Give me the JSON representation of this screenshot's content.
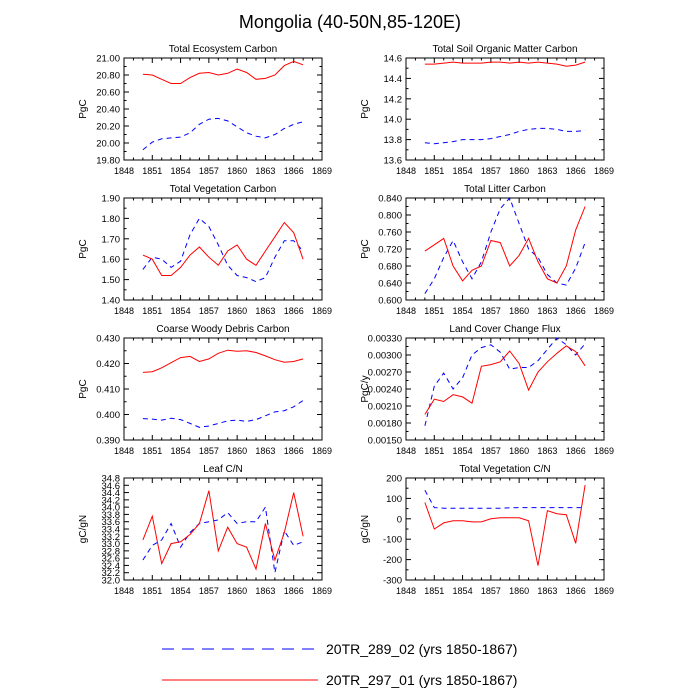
{
  "title": "Mongolia (40-50N,85-120E)",
  "legend": [
    {
      "label": "20TR_289_02 (yrs 1850-1867)",
      "color": "#0000ff",
      "dash": "dashed"
    },
    {
      "label": "20TR_297_01 (yrs 1850-1867)",
      "color": "#ff0000",
      "dash": "solid"
    }
  ],
  "chart_data": [
    {
      "type": "line",
      "title": "Total Ecosystem Carbon",
      "xlabel": "",
      "ylabel": "PgC",
      "xlim": [
        1848,
        1869
      ],
      "xticks": [
        "1848",
        "1851",
        "1854",
        "1857",
        "1860",
        "1863",
        "1866",
        "1869"
      ],
      "ylim": [
        19.8,
        21.0
      ],
      "yticks": [
        "19.80",
        "20.00",
        "20.20",
        "20.40",
        "20.60",
        "20.80",
        "21.00"
      ],
      "x": [
        1850,
        1851,
        1852,
        1853,
        1854,
        1855,
        1856,
        1857,
        1858,
        1859,
        1860,
        1861,
        1862,
        1863,
        1864,
        1865,
        1866,
        1867
      ],
      "series": [
        {
          "name": "20TR_289_02",
          "values": [
            19.92,
            20.01,
            20.05,
            20.06,
            20.07,
            20.12,
            20.22,
            20.28,
            20.29,
            20.26,
            20.19,
            20.12,
            20.08,
            20.06,
            20.1,
            20.17,
            20.22,
            20.25
          ]
        },
        {
          "name": "20TR_297_01",
          "values": [
            20.81,
            20.8,
            20.75,
            20.7,
            20.7,
            20.77,
            20.82,
            20.83,
            20.8,
            20.82,
            20.87,
            20.83,
            20.75,
            20.76,
            20.8,
            20.91,
            20.96,
            20.92
          ]
        }
      ]
    },
    {
      "type": "line",
      "title": "Total Soil Organic Matter Carbon",
      "xlabel": "",
      "ylabel": "PgC",
      "xlim": [
        1848,
        1869
      ],
      "xticks": [
        "1848",
        "1851",
        "1854",
        "1857",
        "1860",
        "1863",
        "1866",
        "1869"
      ],
      "ylim": [
        13.6,
        14.6
      ],
      "yticks": [
        "13.6",
        "13.8",
        "14.0",
        "14.2",
        "14.4",
        "14.6"
      ],
      "x": [
        1850,
        1851,
        1852,
        1853,
        1854,
        1855,
        1856,
        1857,
        1858,
        1859,
        1860,
        1861,
        1862,
        1863,
        1864,
        1865,
        1866,
        1867
      ],
      "series": [
        {
          "name": "20TR_289_02",
          "values": [
            13.77,
            13.76,
            13.77,
            13.78,
            13.8,
            13.8,
            13.8,
            13.81,
            13.83,
            13.85,
            13.88,
            13.9,
            13.91,
            13.91,
            13.9,
            13.88,
            13.88,
            13.89
          ]
        },
        {
          "name": "20TR_297_01",
          "values": [
            14.54,
            14.54,
            14.55,
            14.56,
            14.55,
            14.55,
            14.55,
            14.56,
            14.56,
            14.55,
            14.56,
            14.55,
            14.56,
            14.55,
            14.54,
            14.52,
            14.53,
            14.56
          ]
        }
      ]
    },
    {
      "type": "line",
      "title": "Total Vegetation Carbon",
      "xlabel": "",
      "ylabel": "PgC",
      "xlim": [
        1848,
        1869
      ],
      "xticks": [
        "1848",
        "1851",
        "1854",
        "1857",
        "1860",
        "1863",
        "1866",
        "1869"
      ],
      "ylim": [
        1.4,
        1.9
      ],
      "yticks": [
        "1.40",
        "1.50",
        "1.60",
        "1.70",
        "1.80",
        "1.90"
      ],
      "x": [
        1850,
        1851,
        1852,
        1853,
        1854,
        1855,
        1856,
        1857,
        1858,
        1859,
        1860,
        1861,
        1862,
        1863,
        1864,
        1865,
        1866,
        1867
      ],
      "series": [
        {
          "name": "20TR_289_02",
          "values": [
            1.55,
            1.61,
            1.6,
            1.56,
            1.59,
            1.72,
            1.8,
            1.76,
            1.67,
            1.57,
            1.52,
            1.51,
            1.49,
            1.51,
            1.61,
            1.69,
            1.69,
            1.64
          ]
        },
        {
          "name": "20TR_297_01",
          "values": [
            1.62,
            1.6,
            1.52,
            1.52,
            1.56,
            1.62,
            1.66,
            1.61,
            1.57,
            1.64,
            1.67,
            1.6,
            1.57,
            1.64,
            1.71,
            1.78,
            1.73,
            1.6
          ]
        }
      ]
    },
    {
      "type": "line",
      "title": "Total Litter Carbon",
      "xlabel": "",
      "ylabel": "PgC",
      "xlim": [
        1848,
        1869
      ],
      "xticks": [
        "1848",
        "1851",
        "1854",
        "1857",
        "1860",
        "1863",
        "1866",
        "1869"
      ],
      "ylim": [
        0.6,
        0.84
      ],
      "yticks": [
        "0.600",
        "0.640",
        "0.680",
        "0.720",
        "0.760",
        "0.800",
        "0.840"
      ],
      "x": [
        1850,
        1851,
        1852,
        1853,
        1854,
        1855,
        1856,
        1857,
        1858,
        1859,
        1860,
        1861,
        1862,
        1863,
        1864,
        1865,
        1866,
        1867
      ],
      "series": [
        {
          "name": "20TR_289_02",
          "values": [
            0.615,
            0.65,
            0.7,
            0.74,
            0.69,
            0.65,
            0.69,
            0.76,
            0.815,
            0.84,
            0.78,
            0.72,
            0.7,
            0.66,
            0.64,
            0.635,
            0.675,
            0.735
          ]
        },
        {
          "name": "20TR_297_01",
          "values": [
            0.715,
            0.73,
            0.745,
            0.68,
            0.645,
            0.67,
            0.68,
            0.74,
            0.735,
            0.68,
            0.705,
            0.745,
            0.69,
            0.65,
            0.64,
            0.68,
            0.765,
            0.82
          ]
        }
      ]
    },
    {
      "type": "line",
      "title": "Coarse Woody Debris Carbon",
      "xlabel": "",
      "ylabel": "PgC",
      "xlim": [
        1848,
        1869
      ],
      "xticks": [
        "1848",
        "1851",
        "1854",
        "1857",
        "1860",
        "1863",
        "1866",
        "1869"
      ],
      "ylim": [
        0.39,
        0.43
      ],
      "yticks": [
        "0.390",
        "0.400",
        "0.410",
        "0.420",
        "0.430"
      ],
      "x": [
        1850,
        1851,
        1852,
        1853,
        1854,
        1855,
        1856,
        1857,
        1858,
        1859,
        1860,
        1861,
        1862,
        1863,
        1864,
        1865,
        1866,
        1867
      ],
      "series": [
        {
          "name": "20TR_289_02",
          "values": [
            0.3984,
            0.3982,
            0.3978,
            0.3985,
            0.398,
            0.3965,
            0.395,
            0.3955,
            0.3965,
            0.3975,
            0.3978,
            0.3973,
            0.398,
            0.3995,
            0.401,
            0.4015,
            0.403,
            0.4055
          ]
        },
        {
          "name": "20TR_297_01",
          "values": [
            0.4165,
            0.4168,
            0.4183,
            0.4203,
            0.4223,
            0.4228,
            0.4208,
            0.4218,
            0.424,
            0.4252,
            0.4248,
            0.425,
            0.4243,
            0.423,
            0.4215,
            0.4205,
            0.4208,
            0.4218
          ]
        }
      ]
    },
    {
      "type": "line",
      "title": "Land Cover Change Flux",
      "xlabel": "",
      "ylabel": "PgC/y",
      "xlim": [
        1848,
        1869
      ],
      "xticks": [
        "1848",
        "1851",
        "1854",
        "1857",
        "1860",
        "1863",
        "1866",
        "1869"
      ],
      "ylim": [
        0.0015,
        0.0033
      ],
      "yticks": [
        "0.00150",
        "0.00180",
        "0.00210",
        "0.00240",
        "0.00270",
        "0.00300",
        "0.00330"
      ],
      "x": [
        1850,
        1851,
        1852,
        1853,
        1854,
        1855,
        1856,
        1857,
        1858,
        1859,
        1860,
        1861,
        1862,
        1863,
        1864,
        1865,
        1866,
        1867
      ],
      "series": [
        {
          "name": "20TR_289_02",
          "values": [
            0.00175,
            0.00245,
            0.00268,
            0.0024,
            0.0026,
            0.003,
            0.00313,
            0.00318,
            0.00305,
            0.00275,
            0.00278,
            0.00278,
            0.0029,
            0.0031,
            0.0033,
            0.00318,
            0.003,
            0.0032
          ]
        },
        {
          "name": "20TR_297_01",
          "values": [
            0.00195,
            0.00222,
            0.00218,
            0.0023,
            0.00226,
            0.00215,
            0.0028,
            0.00283,
            0.00288,
            0.00307,
            0.00285,
            0.00238,
            0.0027,
            0.00288,
            0.00303,
            0.00316,
            0.00306,
            0.00281
          ]
        }
      ]
    },
    {
      "type": "line",
      "title": "Leaf C/N",
      "xlabel": "",
      "ylabel": "gC/gN",
      "xlim": [
        1848,
        1869
      ],
      "xticks": [
        "1848",
        "1851",
        "1854",
        "1857",
        "1860",
        "1863",
        "1866",
        "1869"
      ],
      "ylim": [
        32.0,
        34.8
      ],
      "yticks": [
        "32.0",
        "32.2",
        "32.4",
        "32.6",
        "32.8",
        "33.0",
        "33.2",
        "33.4",
        "33.6",
        "33.8",
        "34.0",
        "34.2",
        "34.4",
        "34.6",
        "34.8"
      ],
      "x": [
        1850,
        1851,
        1852,
        1853,
        1854,
        1855,
        1856,
        1857,
        1858,
        1859,
        1860,
        1861,
        1862,
        1863,
        1864,
        1865,
        1866,
        1867
      ],
      "series": [
        {
          "name": "20TR_289_02",
          "values": [
            32.55,
            32.95,
            33.1,
            33.55,
            32.9,
            33.3,
            33.55,
            33.6,
            33.65,
            33.85,
            33.55,
            33.6,
            33.6,
            34.0,
            32.2,
            33.35,
            32.95,
            33.05
          ]
        },
        {
          "name": "20TR_297_01",
          "values": [
            33.1,
            33.75,
            32.45,
            33.0,
            33.05,
            33.25,
            33.55,
            34.45,
            32.8,
            33.45,
            33.0,
            32.9,
            32.3,
            33.55,
            32.55,
            33.3,
            34.4,
            33.2
          ]
        }
      ]
    },
    {
      "type": "line",
      "title": "Total Vegetation C/N",
      "xlabel": "",
      "ylabel": "gC/gN",
      "xlim": [
        1848,
        1869
      ],
      "xticks": [
        "1848",
        "1851",
        "1854",
        "1857",
        "1860",
        "1863",
        "1866",
        "1869"
      ],
      "ylim": [
        -300,
        200
      ],
      "yticks": [
        "-300",
        "-200",
        "-100",
        "0",
        "100",
        "200"
      ],
      "x": [
        1850,
        1851,
        1852,
        1853,
        1854,
        1855,
        1856,
        1857,
        1858,
        1859,
        1860,
        1861,
        1862,
        1863,
        1864,
        1865,
        1866,
        1867
      ],
      "series": [
        {
          "name": "20TR_289_02",
          "values": [
            140,
            55,
            52,
            52,
            52,
            52,
            52,
            52,
            52,
            54,
            55,
            55,
            55,
            55,
            55,
            55,
            55,
            55
          ]
        },
        {
          "name": "20TR_297_01",
          "values": [
            80,
            -50,
            -20,
            -10,
            -10,
            -15,
            -15,
            0,
            5,
            5,
            5,
            -10,
            -230,
            40,
            25,
            20,
            -120,
            165
          ]
        }
      ]
    }
  ]
}
